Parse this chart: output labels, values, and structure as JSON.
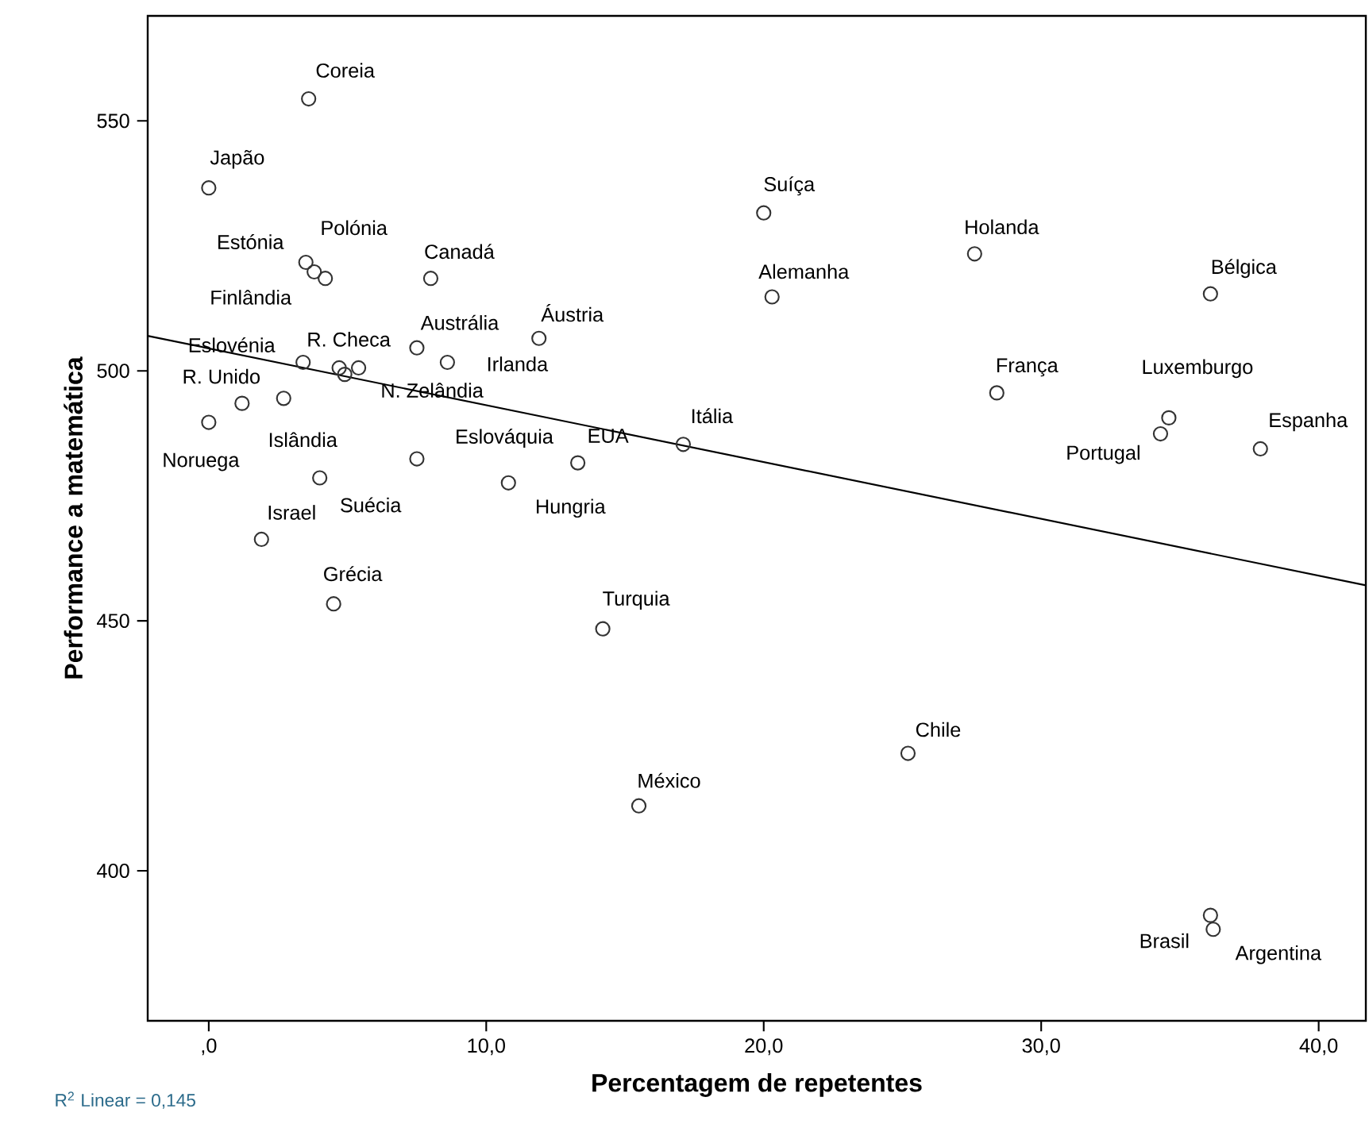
{
  "chart_data": {
    "type": "scatter",
    "xlabel": "Percentagem de repetentes",
    "ylabel": "Performance a matemática",
    "xlim": [
      -2.2,
      41.7
    ],
    "ylim": [
      370,
      571
    ],
    "xticks": [
      {
        "value": 0,
        "label": ",0"
      },
      {
        "value": 10,
        "label": "10,0"
      },
      {
        "value": 20,
        "label": "20,0"
      },
      {
        "value": 30,
        "label": "30,0"
      },
      {
        "value": 40,
        "label": "40,0"
      }
    ],
    "yticks": [
      400,
      450,
      500,
      550
    ],
    "grid": false,
    "legend": false,
    "marker": "circle",
    "series": [
      {
        "type": "scatter",
        "color": "#333333",
        "x": [
          3.6,
          0.0,
          3.5,
          3.8,
          4.2,
          8.0,
          11.9,
          7.5,
          8.6,
          3.4,
          4.7,
          4.9,
          5.4,
          1.2,
          2.7,
          0.0,
          4.0,
          7.5,
          10.8,
          13.3,
          1.9,
          4.5,
          14.2,
          15.5,
          25.2,
          36.1,
          36.2,
          17.1,
          20.0,
          20.3,
          27.6,
          36.1,
          28.4,
          34.6,
          34.3,
          37.9
        ],
        "values": [
          554.4,
          536.6,
          521.7,
          519.8,
          518.5,
          518.5,
          506.5,
          504.6,
          501.7,
          501.7,
          500.6,
          499.3,
          500.6,
          493.5,
          494.5,
          489.7,
          478.6,
          482.4,
          477.6,
          481.6,
          466.3,
          453.4,
          448.4,
          413.0,
          423.5,
          391.1,
          388.3,
          485.3,
          531.6,
          514.8,
          523.4,
          515.4,
          495.6,
          490.6,
          487.4,
          484.4
        ]
      },
      {
        "type": "line",
        "color": "#000000",
        "marker": "none",
        "x": [
          -2.2,
          41.7
        ],
        "values": [
          507.0,
          457.1
        ]
      }
    ],
    "annotations": [
      {
        "text": "Coreia",
        "x": 3.6,
        "y": 554.4
      },
      {
        "text": "Japão",
        "x": 0.0,
        "y": 536.6
      },
      {
        "text": "Estónia",
        "x": 3.5,
        "y": 521.7
      },
      {
        "text": "Polónia",
        "x": 4.2,
        "y": 518.5
      },
      {
        "text": "Canadá",
        "x": 8.0,
        "y": 518.5
      },
      {
        "text": "Finlândia",
        "x": 3.8,
        "y": 519.8
      },
      {
        "text": "Eslovénia",
        "x": 3.4,
        "y": 501.7
      },
      {
        "text": "R. Checa",
        "x": 4.7,
        "y": 500.6
      },
      {
        "text": "Austrália",
        "x": 7.5,
        "y": 504.6
      },
      {
        "text": "Áustria",
        "x": 11.9,
        "y": 506.5
      },
      {
        "text": "Irlanda",
        "x": 8.6,
        "y": 501.7
      },
      {
        "text": "N. Zelândia",
        "x": 4.9,
        "y": 499.3
      },
      {
        "text": "R. Unido",
        "x": 1.2,
        "y": 493.5
      },
      {
        "text": "Islândia",
        "x": 2.7,
        "y": 494.5
      },
      {
        "text": "Noruega",
        "x": 0.0,
        "y": 489.7
      },
      {
        "text": "Eslováquia",
        "x": 7.5,
        "y": 482.4
      },
      {
        "text": "EUA",
        "x": 13.3,
        "y": 481.6
      },
      {
        "text": "Hungria",
        "x": 10.8,
        "y": 477.6
      },
      {
        "text": "Israel",
        "x": 1.9,
        "y": 466.3
      },
      {
        "text": "Suécia",
        "x": 4.0,
        "y": 478.6
      },
      {
        "text": "Grécia",
        "x": 4.5,
        "y": 453.4
      },
      {
        "text": "Itália",
        "x": 17.1,
        "y": 485.3
      },
      {
        "text": "Turquia",
        "x": 14.2,
        "y": 448.4
      },
      {
        "text": "México",
        "x": 15.5,
        "y": 413.0
      },
      {
        "text": "Suíça",
        "x": 20.0,
        "y": 531.6
      },
      {
        "text": "Alemanha",
        "x": 20.3,
        "y": 514.8
      },
      {
        "text": "Holanda",
        "x": 27.6,
        "y": 523.4
      },
      {
        "text": "Bélgica",
        "x": 36.1,
        "y": 515.4
      },
      {
        "text": "França",
        "x": 28.4,
        "y": 495.6
      },
      {
        "text": "Luxemburgo",
        "x": 34.6,
        "y": 490.6
      },
      {
        "text": "Portugal",
        "x": 34.3,
        "y": 487.4
      },
      {
        "text": "Espanha",
        "x": 37.9,
        "y": 484.4
      },
      {
        "text": "Chile",
        "x": 25.2,
        "y": 423.5
      },
      {
        "text": "Brasil",
        "x": 36.1,
        "y": 391.1
      },
      {
        "text": "Argentina",
        "x": 36.2,
        "y": 388.3
      },
      "R$^{2}$ Linear = 0,145"
    ]
  }
}
